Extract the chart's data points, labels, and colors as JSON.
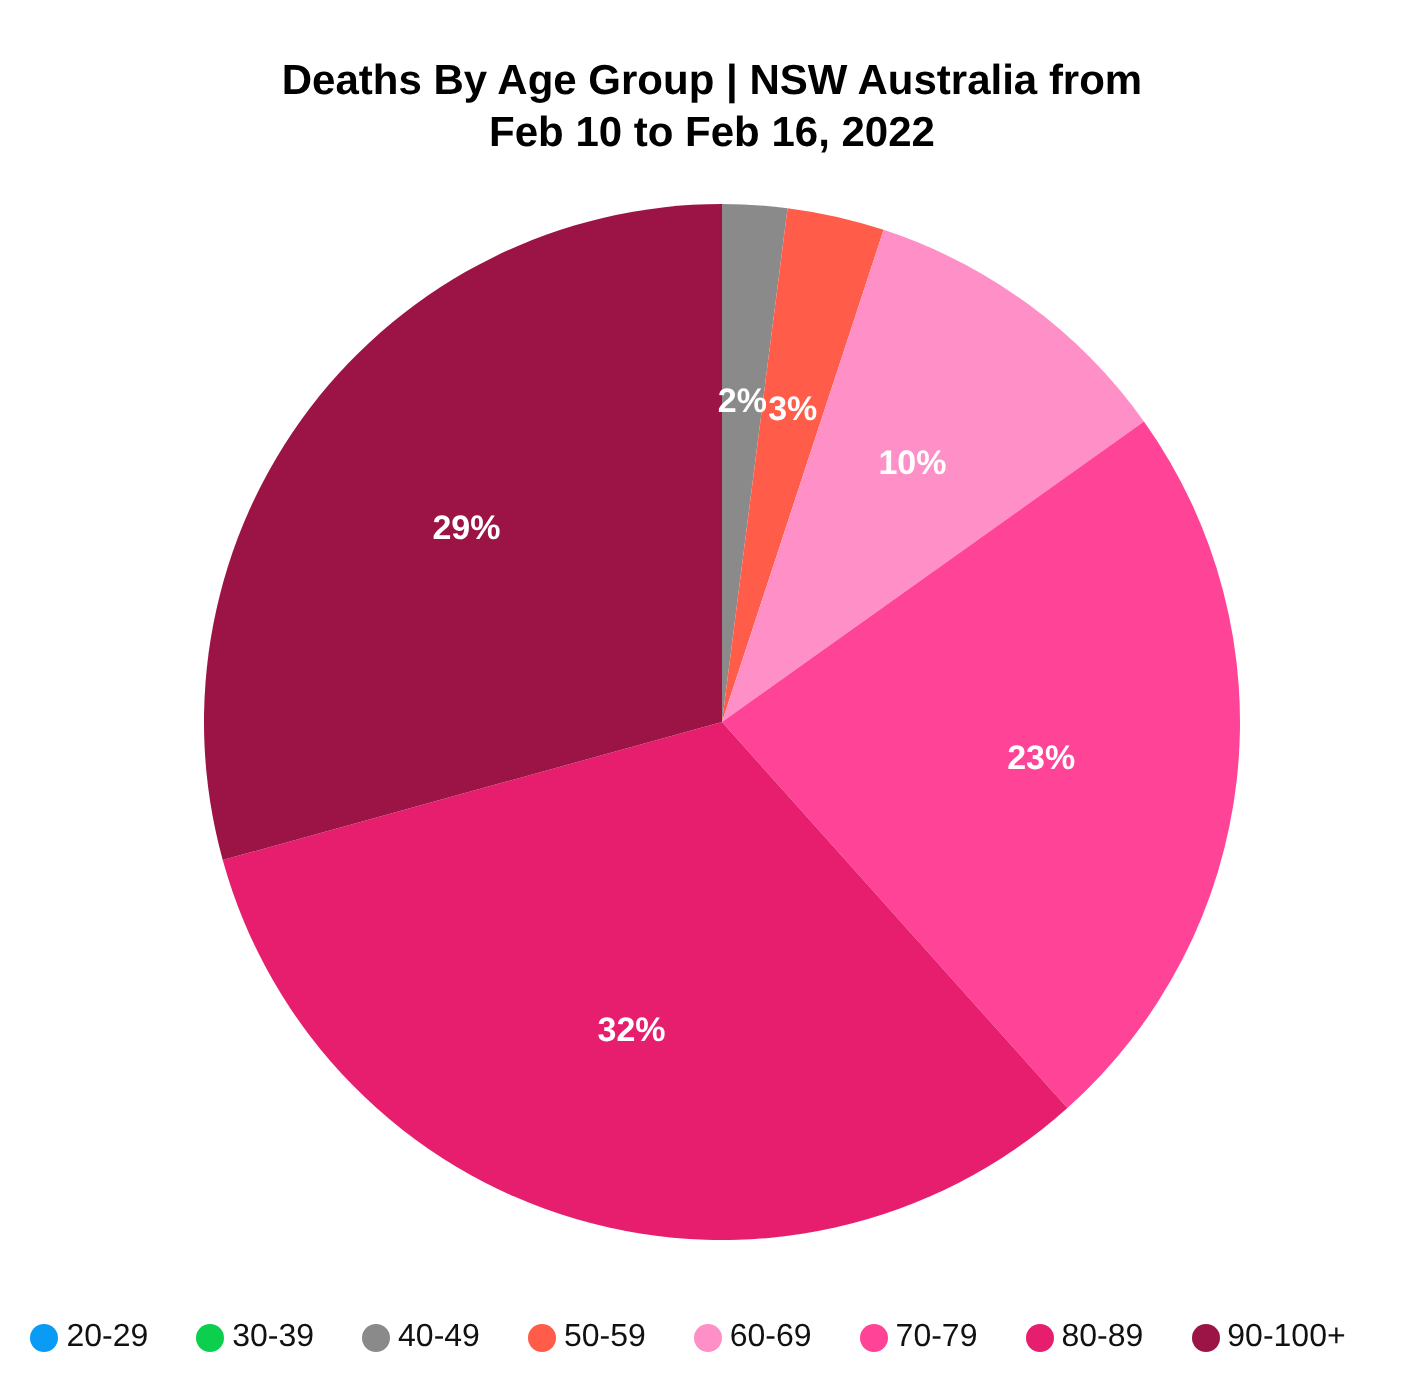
{
  "chart_data": {
    "type": "pie",
    "title": "Deaths By Age Group | NSW Australia from Feb 10 to Feb 16, 2022",
    "categories": [
      "20-29",
      "30-39",
      "40-49",
      "50-59",
      "60-69",
      "70-79",
      "80-89",
      "90-100+"
    ],
    "values": [
      0,
      0,
      2,
      3,
      10,
      23,
      32,
      29
    ],
    "colors": [
      "#0a9bf5",
      "#0bcf4d",
      "#8a8a8a",
      "#ff5c4a",
      "#ff8fc7",
      "#ff4397",
      "#e71e6e",
      "#9c1446"
    ],
    "value_labels": [
      null,
      null,
      "2%",
      "3%",
      "10%",
      "23%",
      "32%",
      "29%"
    ],
    "legend": "bottom"
  }
}
